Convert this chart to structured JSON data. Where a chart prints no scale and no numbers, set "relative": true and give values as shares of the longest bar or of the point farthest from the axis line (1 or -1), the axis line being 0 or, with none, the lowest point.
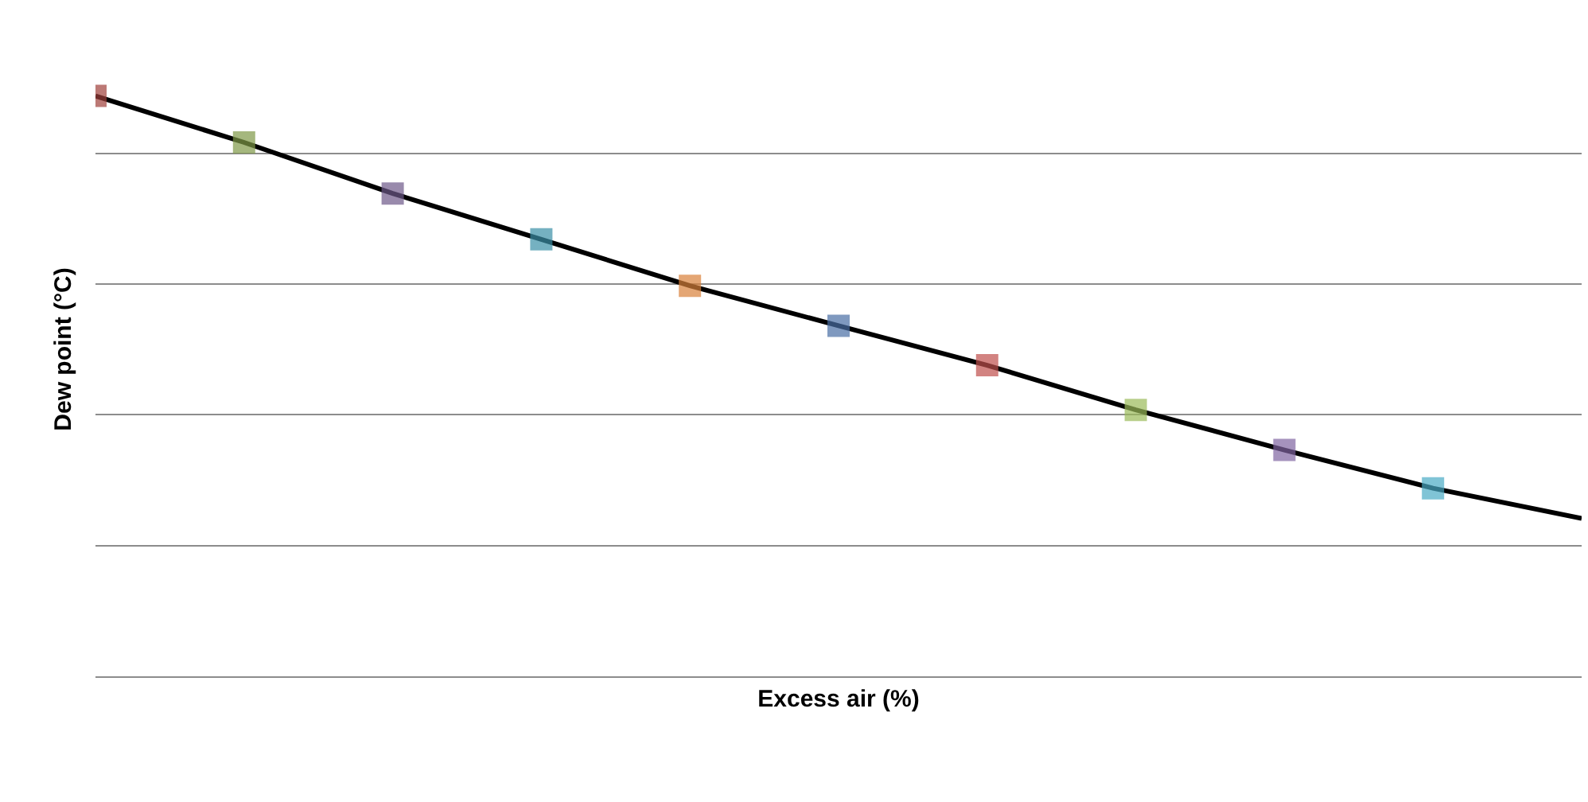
{
  "chart_data": {
    "type": "line",
    "relative": true,
    "xlabel": "Excess air (%)",
    "ylabel": "Dew point (°C)",
    "grid": "y",
    "marker": "square",
    "line_style": "solid",
    "categories": [
      null,
      null,
      null,
      null,
      null,
      null,
      null,
      null,
      null,
      null,
      null
    ],
    "series": [
      {
        "color": "#000000",
        "colors": [
          "#a0413c",
          "#7f9a48",
          "#6e5a8a",
          "#3c91a8",
          "#d9813a",
          "#4a6fa5",
          "#c0504d",
          "#9bbb59",
          "#8064a2",
          "#4bacc6",
          null
        ],
        "values": [
          1.0,
          0.92,
          0.832,
          0.753,
          0.673,
          0.604,
          0.536,
          0.459,
          0.39,
          0.324,
          0.272
        ]
      }
    ]
  }
}
